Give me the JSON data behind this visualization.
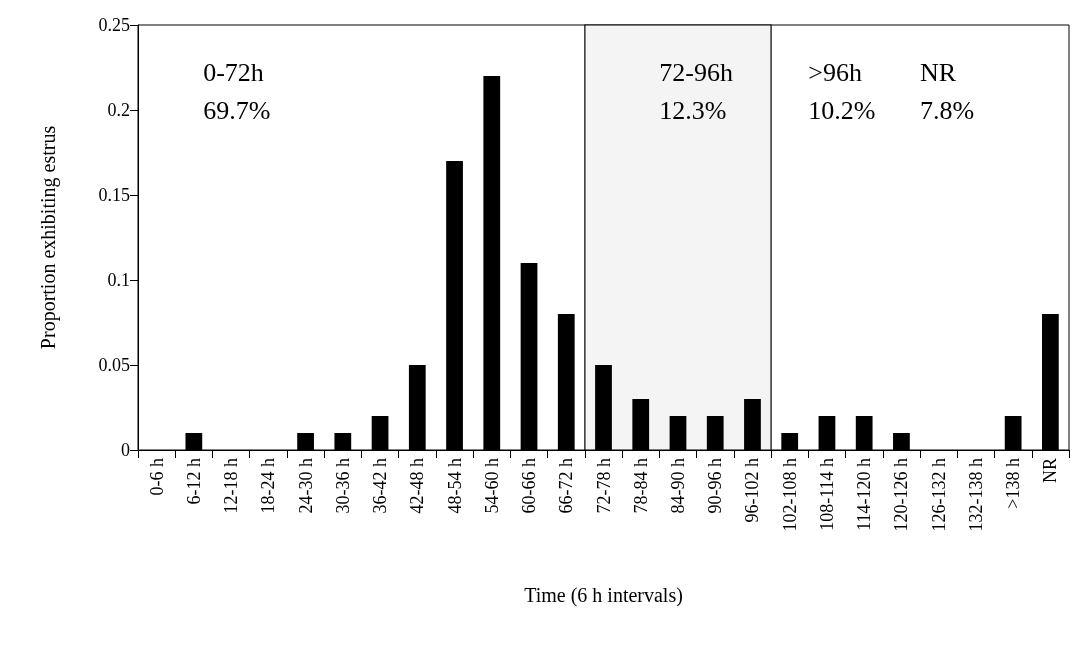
{
  "chart_data": {
    "type": "bar",
    "xlabel": "Time (6 h intervals)",
    "ylabel": "Proportion exhibiting estrus",
    "categories": [
      "0-6 h",
      "6-12 h",
      "12-18 h",
      "18-24 h",
      "24-30 h",
      "30-36 h",
      "36-42 h",
      "42-48 h",
      "48-54 h",
      "54-60 h",
      "60-66 h",
      "66-72 h",
      "72-78 h",
      "78-84 h",
      "84-90 h",
      "90-96 h",
      "96-102 h",
      "102-108 h",
      "108-114 h",
      "114-120 h",
      "120-126 h",
      "126-132 h",
      "132-138 h",
      ">138 h",
      "NR"
    ],
    "values": [
      0,
      0.01,
      0,
      0,
      0.01,
      0.01,
      0.02,
      0.05,
      0.17,
      0.22,
      0.11,
      0.08,
      0.05,
      0.03,
      0.02,
      0.02,
      0.03,
      0.01,
      0.02,
      0.02,
      0.01,
      0,
      0,
      0.02,
      0.08
    ],
    "color": "#000000",
    "ylim": [
      0,
      0.25
    ],
    "yticks": [
      0,
      0.05,
      0.1,
      0.15,
      0.2,
      0.25
    ],
    "bands": [
      {
        "axis": "x",
        "from": "72-78 h",
        "to": "96-102 h",
        "color": "#f4f4f4"
      }
    ],
    "annotations": [
      "0-72h\n69.7%",
      "72-96h\n12.3%",
      ">96h\n10.2%",
      "NR\n7.8%"
    ],
    "grid": false
  }
}
